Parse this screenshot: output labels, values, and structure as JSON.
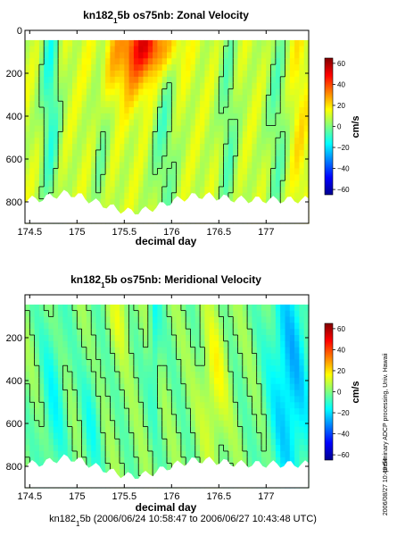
{
  "chart_data": [
    {
      "type": "heatmap",
      "title_parts": [
        "kn182",
        "1",
        "5b os75nb: Zonal Velocity"
      ],
      "xlabel": "decimal day",
      "ylabel": "",
      "xlim": [
        174.45,
        177.45
      ],
      "ylim": [
        900,
        0
      ],
      "xticks": [
        174.5,
        175,
        175.5,
        176,
        176.5,
        177
      ],
      "xtick_labels": [
        "174.5",
        "175",
        "175.5",
        "176",
        "176.5",
        "177"
      ],
      "yticks": [
        0,
        200,
        400,
        600,
        800
      ],
      "ytick_labels": [
        "0",
        "200",
        "400",
        "600",
        "800"
      ],
      "colorbar": {
        "label": "cm/s",
        "range": [
          -65,
          65
        ],
        "ticks": [
          60,
          40,
          20,
          0,
          -20,
          -40,
          -60
        ],
        "tick_labels": [
          "60",
          "40",
          "20",
          "0",
          "−20",
          "−40",
          "−60"
        ]
      },
      "field": "zonal",
      "contour_level": 0
    },
    {
      "type": "heatmap",
      "title_parts": [
        "kn182",
        "1",
        "5b os75nb: Meridional Velocity"
      ],
      "xlabel": "decimal day",
      "ylabel": "",
      "xlim": [
        174.45,
        177.45
      ],
      "ylim": [
        900,
        0
      ],
      "xticks": [
        174.5,
        175,
        175.5,
        176,
        176.5,
        177
      ],
      "xtick_labels": [
        "174.5",
        "175",
        "175.5",
        "176",
        "176.5",
        "177"
      ],
      "yticks": [
        200,
        400,
        600,
        800
      ],
      "ytick_labels": [
        "200",
        "400",
        "600",
        "800"
      ],
      "colorbar": {
        "label": "cm/s",
        "range": [
          -65,
          65
        ],
        "ticks": [
          60,
          40,
          20,
          0,
          -20,
          -40,
          -60
        ],
        "tick_labels": [
          "60",
          "40",
          "20",
          "0",
          "−20",
          "−40",
          "−60"
        ]
      },
      "field": "meridional",
      "contour_level": 0
    }
  ],
  "footer_parts": [
    "kn182",
    "1",
    "5b (2006/06/24 10:58:47 to 2006/06/27 10:43:48 UTC)"
  ],
  "side_text": "preliminary ADCP processing,  Univ. Hawaii",
  "side_date": "2006/08/27 10:49:54"
}
